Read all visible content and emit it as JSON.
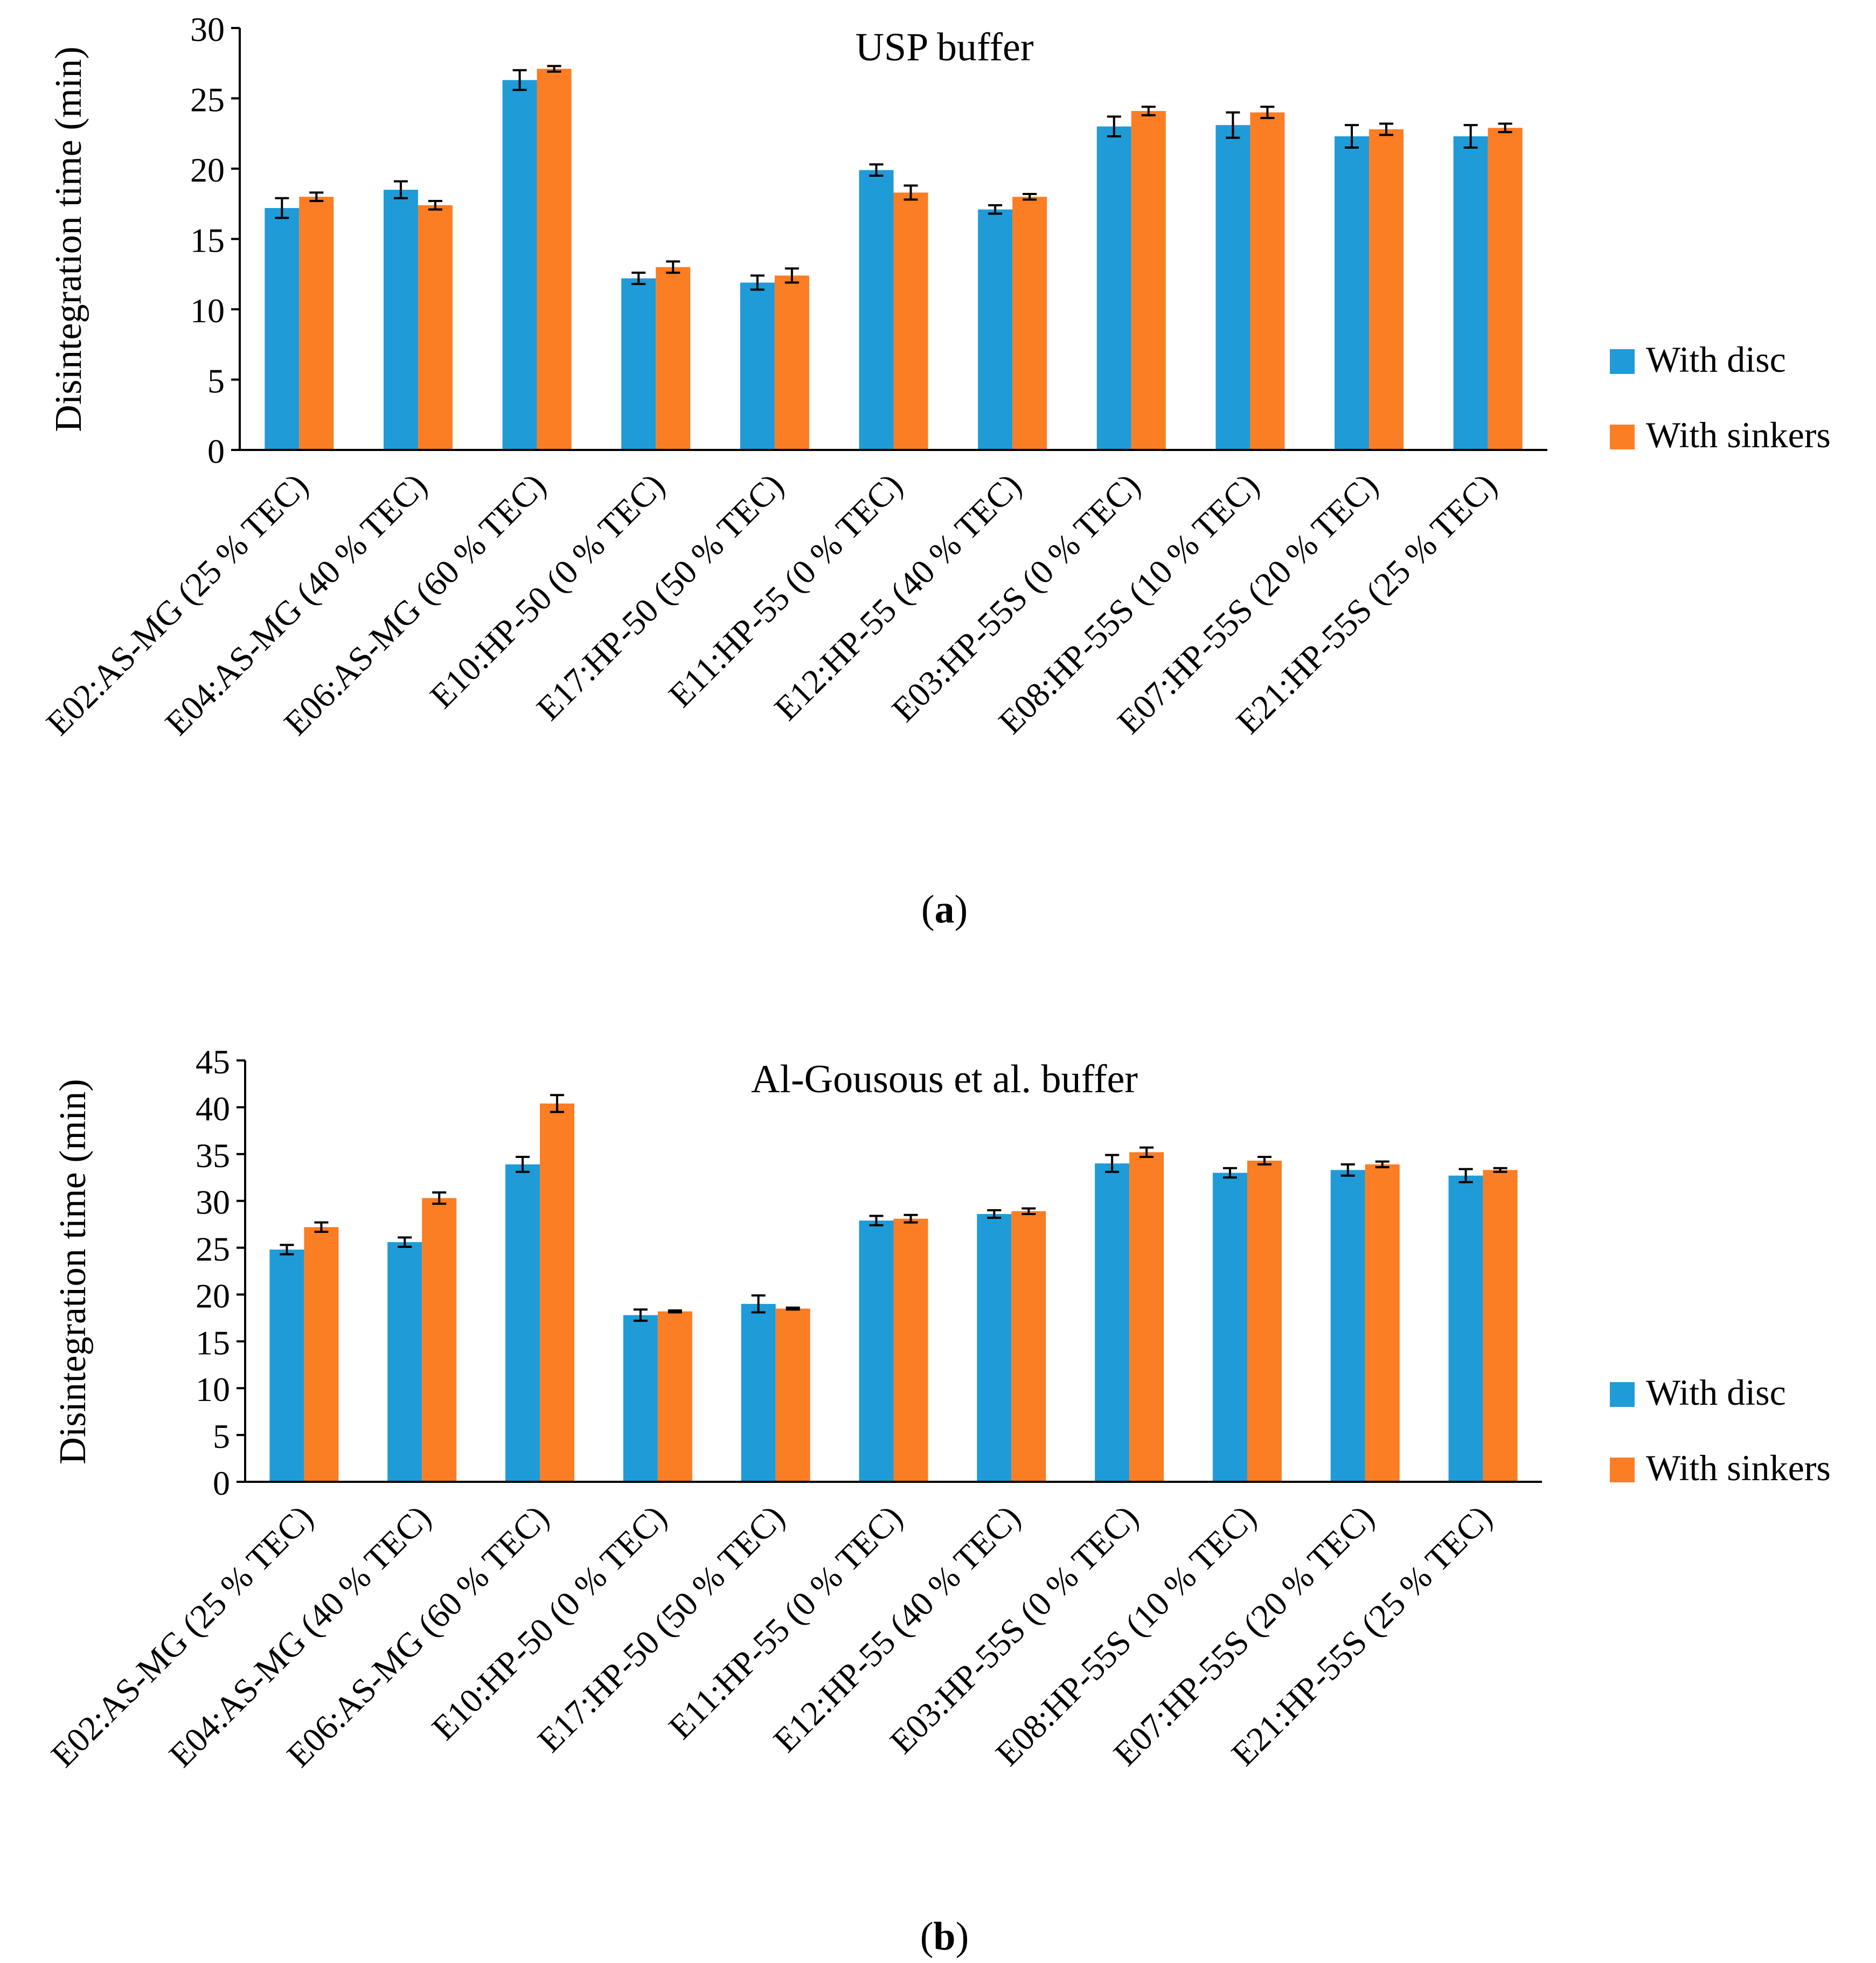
{
  "figure": {
    "panels": [
      {
        "label": "a"
      },
      {
        "label": "b"
      }
    ]
  },
  "legend": {
    "series_colors": [
      "#1f9bd7",
      "#fb7d24"
    ]
  },
  "chart_data": [
    {
      "type": "bar",
      "title": "USP buffer",
      "ylabel": "Disintegration time (min)",
      "xlabel": "",
      "ylim": [
        0,
        30
      ],
      "yticks": [
        0,
        5,
        10,
        15,
        20,
        25,
        30
      ],
      "legend": "right",
      "grid": false,
      "categories": [
        "E02:AS-MG (25 % TEC)",
        "E04:AS-MG (40 % TEC)",
        "E06:AS-MG (60 % TEC)",
        "E10:HP-50 (0 % TEC)",
        "E17:HP-50 (50 % TEC)",
        "E11:HP-55 (0 % TEC)",
        "E12:HP-55 (40 % TEC)",
        "E03:HP-55S (0 % TEC)",
        "E08:HP-55S (10 % TEC)",
        "E07:HP-55S (20 % TEC)",
        "E21:HP-55S (25 % TEC)"
      ],
      "series": [
        {
          "name": "With disc",
          "color": "#1f9bd7",
          "values": [
            17.2,
            18.5,
            26.3,
            12.2,
            11.9,
            19.9,
            17.1,
            23.0,
            23.1,
            22.3,
            22.3
          ],
          "errors": [
            0.7,
            0.6,
            0.7,
            0.4,
            0.5,
            0.4,
            0.3,
            0.7,
            0.9,
            0.8,
            0.8
          ]
        },
        {
          "name": "With sinkers",
          "color": "#fb7d24",
          "values": [
            18.0,
            17.4,
            27.1,
            13.0,
            12.4,
            18.3,
            18.0,
            24.1,
            24.0,
            22.8,
            22.9
          ],
          "errors": [
            0.3,
            0.3,
            0.2,
            0.4,
            0.5,
            0.5,
            0.2,
            0.3,
            0.4,
            0.4,
            0.3
          ]
        }
      ]
    },
    {
      "type": "bar",
      "title": "Al-Gousous et al. buffer",
      "ylabel": "Disintegration time (min)",
      "xlabel": "",
      "ylim": [
        0,
        45
      ],
      "yticks": [
        0,
        5,
        10,
        15,
        20,
        25,
        30,
        35,
        40,
        45
      ],
      "legend": "right",
      "grid": false,
      "categories": [
        "E02:AS-MG (25 % TEC)",
        "E04:AS-MG (40 % TEC)",
        "E06:AS-MG (60 % TEC)",
        "E10:HP-50 (0 % TEC)",
        "E17:HP-50 (50 % TEC)",
        "E11:HP-55 (0 % TEC)",
        "E12:HP-55 (40 % TEC)",
        "E03:HP-55S (0 % TEC)",
        "E08:HP-55S (10 % TEC)",
        "E07:HP-55S (20 % TEC)",
        "E21:HP-55S (25 % TEC)"
      ],
      "series": [
        {
          "name": "With disc",
          "color": "#1f9bd7",
          "values": [
            24.8,
            25.6,
            33.9,
            17.8,
            19.0,
            27.9,
            28.6,
            34.0,
            33.0,
            33.3,
            32.7
          ],
          "errors": [
            0.5,
            0.5,
            0.8,
            0.6,
            0.9,
            0.5,
            0.4,
            0.9,
            0.5,
            0.6,
            0.7
          ]
        },
        {
          "name": "With sinkers",
          "color": "#fb7d24",
          "values": [
            27.2,
            30.3,
            40.4,
            18.2,
            18.5,
            28.1,
            28.9,
            35.2,
            34.3,
            33.9,
            33.3
          ],
          "errors": [
            0.5,
            0.6,
            0.9,
            0.1,
            0.1,
            0.4,
            0.3,
            0.5,
            0.4,
            0.3,
            0.2
          ]
        }
      ]
    }
  ]
}
